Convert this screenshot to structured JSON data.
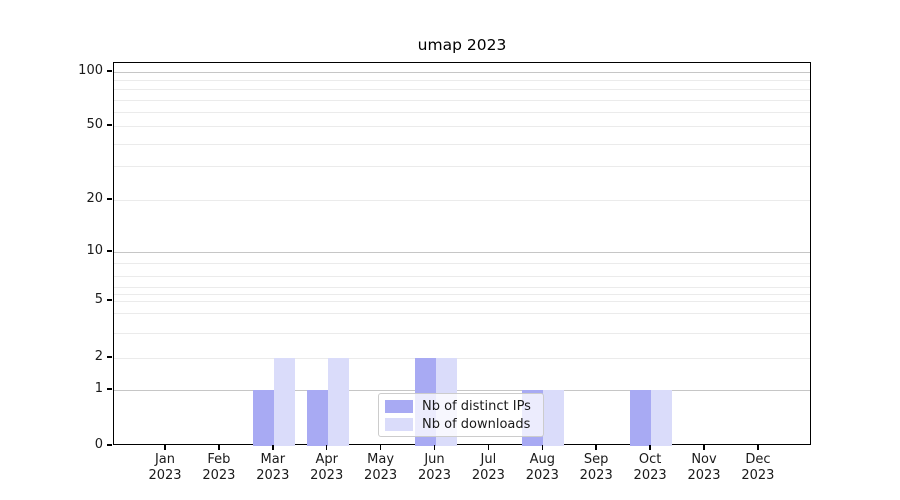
{
  "chart_data": {
    "type": "bar",
    "title": "umap 2023",
    "year_label": "2023",
    "categories": [
      "Jan",
      "Feb",
      "Mar",
      "Apr",
      "May",
      "Jun",
      "Jul",
      "Aug",
      "Sep",
      "Oct",
      "Nov",
      "Dec"
    ],
    "series": [
      {
        "name": "Nb of distinct IPs",
        "color": "#a8aaf3",
        "values": [
          0,
          0,
          1,
          1,
          0,
          2,
          0,
          1,
          0,
          1,
          0,
          0
        ]
      },
      {
        "name": "Nb of downloads",
        "color": "#dadcfa",
        "values": [
          0,
          0,
          2,
          2,
          0,
          2,
          0,
          1,
          0,
          1,
          0,
          0
        ]
      }
    ],
    "y_axis": {
      "scale": "symlog",
      "tick_labels": [
        "0",
        "1",
        "2",
        "5",
        "10",
        "20",
        "50",
        "100"
      ],
      "ylim": [
        0,
        110
      ],
      "major_grid_values": [
        1,
        10,
        100
      ],
      "minor_grid_values": [
        2,
        3,
        4,
        5,
        6,
        7,
        8,
        9,
        20,
        30,
        40,
        50,
        60,
        70,
        80,
        90
      ]
    },
    "legend": {
      "position": "lower-center"
    },
    "grid": "horizontal",
    "colors": {
      "spine": "#000000",
      "major_grid": "#c6c6c6",
      "minor_grid": "#ebebeb"
    }
  }
}
